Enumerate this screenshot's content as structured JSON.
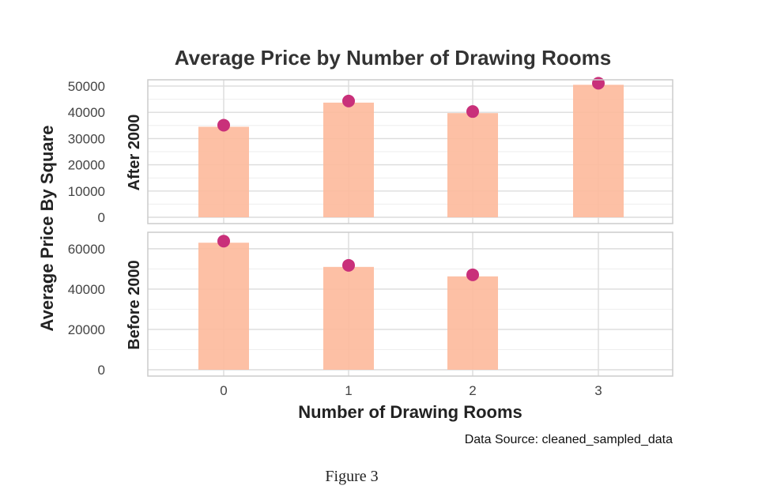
{
  "chart_data": {
    "type": "bar",
    "title": "Average Price by Number of Drawing Rooms",
    "xlabel": "Number of Drawing Rooms",
    "ylabel": "Average Price By Square",
    "caption": "Data Source: cleaned_sampled_data",
    "categories": [
      "0",
      "1",
      "2",
      "3"
    ],
    "grid": true,
    "colors": {
      "bar": "#fdb99b",
      "point": "#c9307a",
      "grid": "#dcdcdc",
      "panel_border": "#cccccc"
    },
    "panels": [
      {
        "name": "After 2000",
        "values": [
          34500,
          43700,
          39700,
          50500
        ],
        "ylim": [
          0,
          51500
        ],
        "yticks": [
          "0",
          "10000",
          "20000",
          "30000",
          "40000",
          "50000"
        ]
      },
      {
        "name": "Before 2000",
        "values": [
          63000,
          51000,
          46300,
          null
        ],
        "ylim": [
          0,
          67000
        ],
        "yticks": [
          "0",
          "20000",
          "40000",
          "60000"
        ]
      }
    ]
  },
  "figure_caption": "Figure 3"
}
